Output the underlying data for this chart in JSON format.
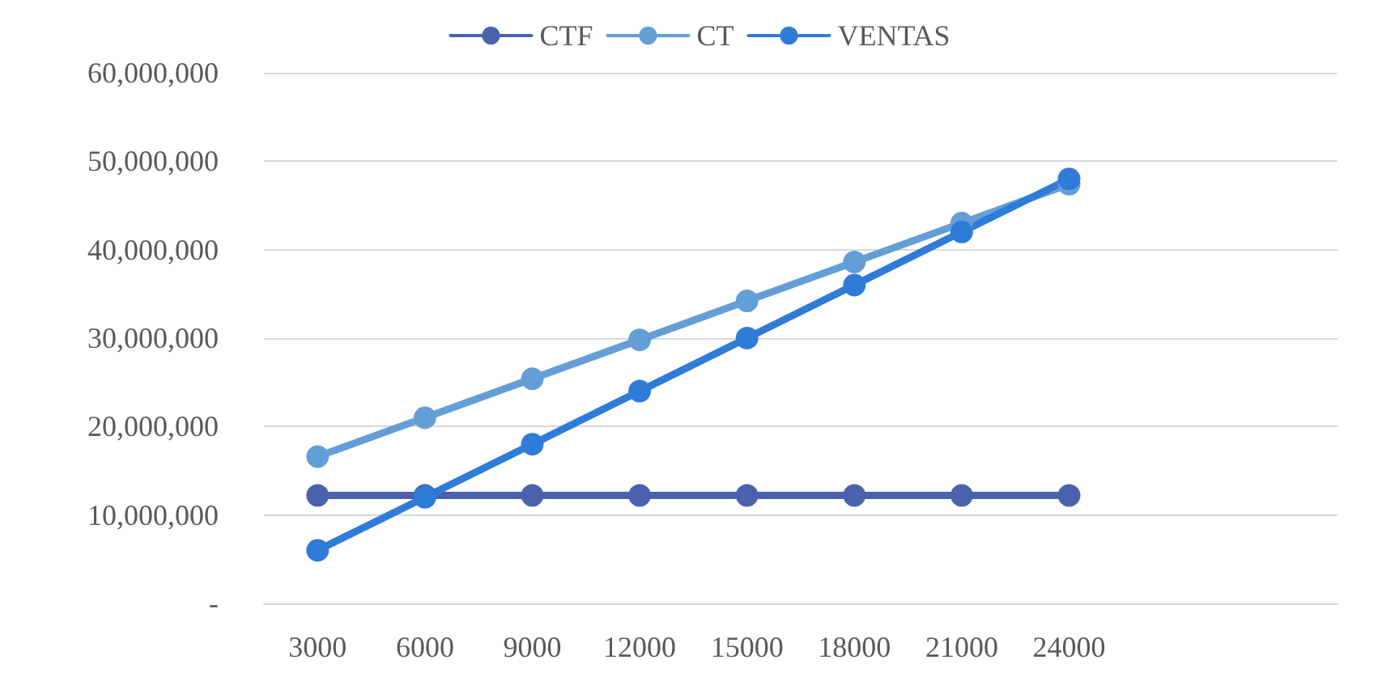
{
  "chart_data": {
    "type": "line",
    "categories": [
      "3000",
      "6000",
      "9000",
      "12000",
      "15000",
      "18000",
      "21000",
      "24000",
      null,
      null
    ],
    "series": [
      {
        "name": "CTF",
        "color": "#4a62ae",
        "values": [
          12200000,
          12200000,
          12200000,
          12200000,
          12200000,
          12200000,
          12200000,
          12200000,
          null,
          null
        ]
      },
      {
        "name": "CT",
        "color": "#649ed6",
        "values": [
          16600000,
          21000000,
          25400000,
          29800000,
          34200000,
          38600000,
          43000000,
          47400000,
          null,
          null
        ]
      },
      {
        "name": "VENTAS",
        "color": "#2f7bd8",
        "values": [
          6000000,
          12000000,
          18000000,
          24000000,
          30000000,
          36000000,
          42000000,
          48000000,
          null,
          null
        ]
      }
    ],
    "ylim": [
      0,
      60000000
    ],
    "yticks": [
      {
        "value": 0,
        "label": "-"
      },
      {
        "value": 10000000,
        "label": "10,000,000"
      },
      {
        "value": 20000000,
        "label": "20,000,000"
      },
      {
        "value": 30000000,
        "label": "30,000,000"
      },
      {
        "value": 40000000,
        "label": "40,000,000"
      },
      {
        "value": 50000000,
        "label": "50,000,000"
      },
      {
        "value": 60000000,
        "label": "60,000,000"
      }
    ],
    "grid": "y",
    "legend": "top",
    "marker": "circle",
    "line_style": "solid"
  }
}
